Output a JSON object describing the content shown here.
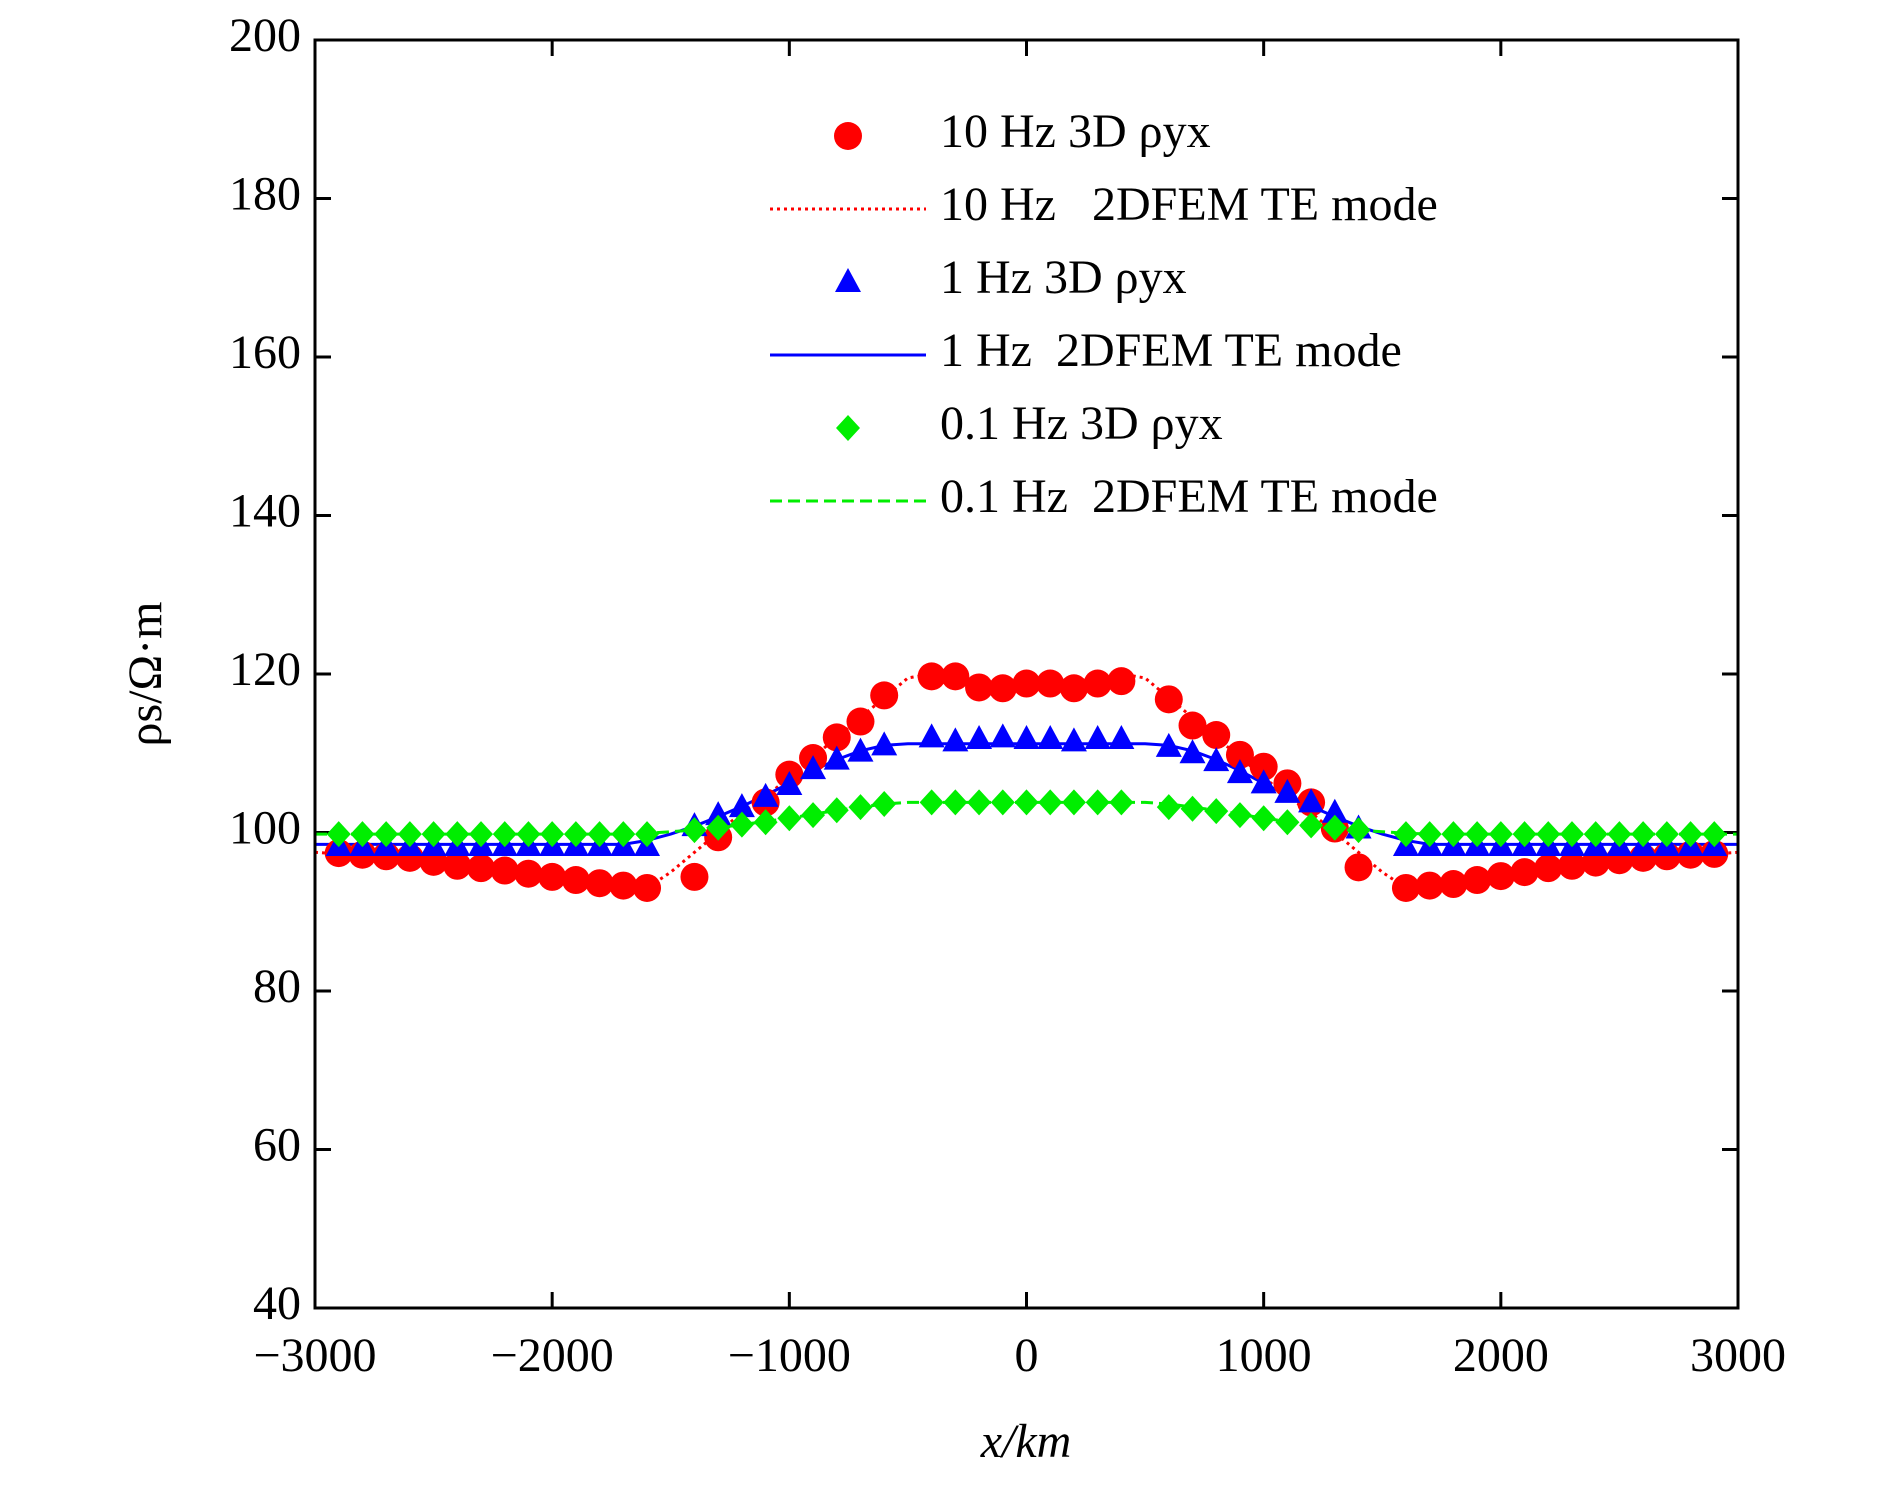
{
  "chart_data": {
    "type": "line",
    "xlabel": "x/km",
    "ylabel": "ρs/Ω·m",
    "xlim": [
      -3000,
      3000
    ],
    "ylim": [
      40,
      200
    ],
    "xticks": [
      {
        "value": -3000,
        "label": "−3000"
      },
      {
        "value": -2000,
        "label": "−2000"
      },
      {
        "value": -1000,
        "label": "−1000"
      },
      0,
      1000,
      2000,
      3000
    ],
    "yticks": [
      40,
      60,
      80,
      100,
      120,
      140,
      160,
      180,
      200
    ],
    "legend": "upper right",
    "series": [
      {
        "name": "10 Hz 3D ρyx",
        "color": "#ff0000",
        "kind": "scatter",
        "marker": "circle",
        "x": [
          -2900,
          -2800,
          -2700,
          -2600,
          -2500,
          -2400,
          -2300,
          -2200,
          -2100,
          -2000,
          -1900,
          -1800,
          -1700,
          -1600,
          -1400,
          -1300,
          -1100,
          -1000,
          -900,
          -800,
          -700,
          -600,
          -400,
          -300,
          -200,
          -100,
          0,
          100,
          200,
          300,
          400,
          600,
          700,
          800,
          900,
          1000,
          1100,
          1200,
          1300,
          1400,
          1600,
          1700,
          1800,
          1900,
          2000,
          2100,
          2200,
          2300,
          2400,
          2500,
          2600,
          2700,
          2800,
          2900
        ],
        "values": [
          97.4,
          97.2,
          97,
          96.8,
          96.3,
          95.8,
          95.5,
          95.2,
          94.8,
          94.4,
          94,
          93.6,
          93.3,
          93,
          94.4,
          99.4,
          103.8,
          107.3,
          109.4,
          112,
          114,
          117.3,
          119.7,
          119.7,
          118.3,
          118.2,
          118.8,
          118.8,
          118.2,
          118.8,
          119.1,
          116.8,
          113.5,
          112.3,
          109.8,
          108.3,
          106.2,
          103.8,
          100.5,
          95.6,
          93,
          93.3,
          93.5,
          94,
          94.5,
          95,
          95.5,
          95.8,
          96.2,
          96.5,
          96.8,
          97,
          97.2,
          97.3
        ]
      },
      {
        "name": "10 Hz   2DFEM TE mode",
        "color": "#ff0000",
        "kind": "line",
        "dash": "dotted",
        "x": [
          -3000,
          -2900,
          -2800,
          -2700,
          -2600,
          -2500,
          -2400,
          -2300,
          -2200,
          -2100,
          -2000,
          -1900,
          -1800,
          -1700,
          -1600,
          -1500,
          -1400,
          -1300,
          -1200,
          -1100,
          -1000,
          -900,
          -800,
          -700,
          -600,
          -500,
          -400,
          -300,
          -200,
          -100,
          0,
          100,
          200,
          300,
          400,
          500,
          600,
          700,
          800,
          900,
          1000,
          1100,
          1200,
          1300,
          1400,
          1500,
          1600,
          1700,
          1800,
          1900,
          2000,
          2100,
          2200,
          2300,
          2400,
          2500,
          2600,
          2700,
          2800,
          2900,
          3000
        ],
        "values": [
          97.5,
          97.3,
          97.1,
          96.9,
          96.6,
          96.2,
          95.8,
          95.5,
          95.1,
          94.7,
          94.3,
          93.9,
          93.5,
          93.2,
          93,
          95,
          97.5,
          100,
          102.5,
          104.5,
          107,
          109.5,
          112,
          114.5,
          117,
          119.5,
          120,
          119.5,
          119,
          118.8,
          118.8,
          118.8,
          119,
          119.5,
          120,
          119.5,
          117,
          114.5,
          112,
          109.5,
          107,
          104.5,
          102.5,
          100,
          97.5,
          95,
          93,
          93.2,
          93.5,
          93.9,
          94.3,
          94.7,
          95.1,
          95.5,
          95.8,
          96.2,
          96.6,
          96.9,
          97.1,
          97.3,
          97.5
        ]
      },
      {
        "name": "1 Hz 3D ρyx",
        "color": "#0000ff",
        "kind": "scatter",
        "marker": "triangle",
        "x": [
          -2900,
          -2800,
          -2700,
          -2600,
          -2500,
          -2400,
          -2300,
          -2200,
          -2100,
          -2000,
          -1900,
          -1800,
          -1700,
          -1600,
          -1400,
          -1300,
          -1200,
          -1100,
          -1000,
          -900,
          -800,
          -700,
          -600,
          -400,
          -300,
          -200,
          -100,
          0,
          100,
          200,
          300,
          400,
          600,
          700,
          800,
          900,
          1000,
          1100,
          1200,
          1300,
          1400,
          1600,
          1700,
          1800,
          1900,
          2000,
          2100,
          2200,
          2300,
          2400,
          2500,
          2600,
          2700,
          2800,
          2900
        ],
        "values": [
          98.3,
          98.3,
          98.3,
          98.3,
          98.3,
          98.3,
          98.3,
          98.3,
          98.3,
          98.3,
          98.3,
          98.3,
          98.3,
          98.3,
          100.8,
          102.2,
          103.2,
          104.5,
          106,
          108,
          109.2,
          110.2,
          111,
          112,
          111.5,
          111.8,
          112,
          111.8,
          111.8,
          111.5,
          111.8,
          111.8,
          110.8,
          110,
          109,
          107.5,
          106.2,
          105,
          103.8,
          102.5,
          100.5,
          98.3,
          98.3,
          98.3,
          98.3,
          98.3,
          98.3,
          98.3,
          98.3,
          98.3,
          98.3,
          98.3,
          98.3,
          98.3,
          98.3
        ]
      },
      {
        "name": "1 Hz  2DFEM TE mode",
        "color": "#0000ff",
        "kind": "line",
        "dash": "solid",
        "x": [
          -3000,
          -2900,
          -2800,
          -2700,
          -2600,
          -2500,
          -2400,
          -2300,
          -2200,
          -2100,
          -2000,
          -1900,
          -1800,
          -1700,
          -1600,
          -1500,
          -1400,
          -1300,
          -1200,
          -1100,
          -1000,
          -900,
          -800,
          -700,
          -600,
          -500,
          -400,
          -300,
          -200,
          -100,
          0,
          100,
          200,
          300,
          400,
          500,
          600,
          700,
          800,
          900,
          1000,
          1100,
          1200,
          1300,
          1400,
          1500,
          1600,
          1700,
          1800,
          1900,
          2000,
          2100,
          2200,
          2300,
          2400,
          2500,
          2600,
          2700,
          2800,
          2900,
          3000
        ],
        "values": [
          98.5,
          98.5,
          98.5,
          98.5,
          98.5,
          98.5,
          98.5,
          98.5,
          98.5,
          98.5,
          98.5,
          98.5,
          98.5,
          98.5,
          99,
          99.8,
          100.8,
          102,
          103.3,
          104.7,
          106.2,
          107.8,
          109.2,
          110.3,
          111,
          111.2,
          111.2,
          111.2,
          111.2,
          111.2,
          111.2,
          111.2,
          111.2,
          111.2,
          111.2,
          111.2,
          111,
          110.3,
          109.2,
          107.8,
          106.2,
          104.7,
          103.3,
          102,
          100.8,
          99.8,
          99,
          98.5,
          98.5,
          98.5,
          98.5,
          98.5,
          98.5,
          98.5,
          98.5,
          98.5,
          98.5,
          98.5,
          98.5,
          98.5,
          98.5
        ]
      },
      {
        "name": "0.1 Hz 3D ρyx",
        "color": "#00ee00",
        "kind": "scatter",
        "marker": "diamond",
        "x": [
          -2900,
          -2800,
          -2700,
          -2600,
          -2500,
          -2400,
          -2300,
          -2200,
          -2100,
          -2000,
          -1900,
          -1800,
          -1700,
          -1600,
          -1400,
          -1300,
          -1200,
          -1100,
          -1000,
          -900,
          -800,
          -700,
          -600,
          -400,
          -300,
          -200,
          -100,
          0,
          100,
          200,
          300,
          400,
          600,
          700,
          800,
          900,
          1000,
          1100,
          1200,
          1300,
          1400,
          1600,
          1700,
          1800,
          1900,
          2000,
          2100,
          2200,
          2300,
          2400,
          2500,
          2600,
          2700,
          2800,
          2900
        ],
        "values": [
          99.8,
          99.8,
          99.8,
          99.8,
          99.8,
          99.8,
          99.8,
          99.8,
          99.8,
          99.8,
          99.8,
          99.8,
          99.8,
          99.8,
          100.3,
          100.6,
          101,
          101.3,
          101.8,
          102.2,
          102.8,
          103.2,
          103.6,
          103.8,
          103.8,
          103.8,
          103.8,
          103.8,
          103.8,
          103.8,
          103.8,
          103.8,
          103.2,
          103,
          102.7,
          102.2,
          101.8,
          101.3,
          100.9,
          100.6,
          100.3,
          99.8,
          99.8,
          99.8,
          99.8,
          99.8,
          99.8,
          99.8,
          99.8,
          99.8,
          99.8,
          99.8,
          99.8,
          99.8,
          99.8
        ]
      },
      {
        "name": "0.1 Hz  2DFEM TE mode",
        "color": "#00ee00",
        "kind": "line",
        "dash": "dashed",
        "x": [
          -3000,
          -2900,
          -2800,
          -2700,
          -2600,
          -2500,
          -2400,
          -2300,
          -2200,
          -2100,
          -2000,
          -1900,
          -1800,
          -1700,
          -1600,
          -1500,
          -1400,
          -1300,
          -1200,
          -1100,
          -1000,
          -900,
          -800,
          -700,
          -600,
          -500,
          -400,
          -300,
          -200,
          -100,
          0,
          100,
          200,
          300,
          400,
          500,
          600,
          700,
          800,
          900,
          1000,
          1100,
          1200,
          1300,
          1400,
          1500,
          1600,
          1700,
          1800,
          1900,
          2000,
          2100,
          2200,
          2300,
          2400,
          2500,
          2600,
          2700,
          2800,
          2900,
          3000
        ],
        "values": [
          99.8,
          99.8,
          99.8,
          99.8,
          99.8,
          99.8,
          99.8,
          99.8,
          99.8,
          99.8,
          99.8,
          99.8,
          99.8,
          99.8,
          99.9,
          100.1,
          100.3,
          100.6,
          101,
          101.4,
          101.8,
          102.3,
          102.8,
          103.2,
          103.6,
          103.8,
          103.8,
          103.8,
          103.8,
          103.8,
          103.8,
          103.8,
          103.8,
          103.8,
          103.8,
          103.8,
          103.6,
          103.2,
          102.8,
          102.3,
          101.8,
          101.4,
          101,
          100.6,
          100.3,
          100.1,
          99.9,
          99.8,
          99.8,
          99.8,
          99.8,
          99.8,
          99.8,
          99.8,
          99.8,
          99.8,
          99.8,
          99.8,
          99.8,
          99.8,
          99.8
        ]
      }
    ]
  }
}
